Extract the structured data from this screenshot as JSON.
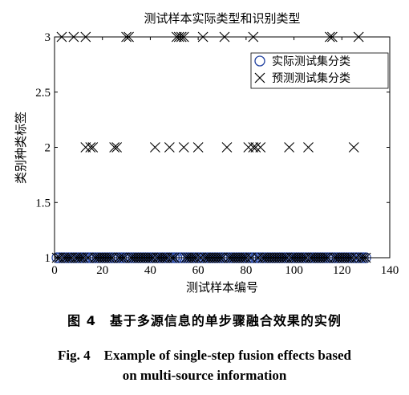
{
  "chart_data": {
    "type": "scatter",
    "title": "测试样本实际类型和识别类型",
    "xlabel": "测试样本编号",
    "ylabel": "类别种类标签",
    "xlim": [
      0,
      140
    ],
    "ylim": [
      1,
      3
    ],
    "xticks": [
      "0",
      "20",
      "40",
      "60",
      "80",
      "100",
      "120",
      "140"
    ],
    "yticks": [
      "1",
      "1.5",
      "2",
      "2.5",
      "3"
    ],
    "legend_position": "top-right",
    "series": [
      {
        "name": "实际测试集分类",
        "marker": "circle",
        "color": "#1f3f9f",
        "x_start": 1,
        "x_end": 130,
        "y": 1
      },
      {
        "name": "预测测试集分类",
        "marker": "x",
        "color": "#000000",
        "points": [
          [
            3,
            3
          ],
          [
            8,
            3
          ],
          [
            13,
            3
          ],
          [
            30,
            3
          ],
          [
            31,
            3
          ],
          [
            51,
            3
          ],
          [
            52,
            3
          ],
          [
            53,
            3
          ],
          [
            54,
            3
          ],
          [
            62,
            3
          ],
          [
            71,
            3
          ],
          [
            83,
            3
          ],
          [
            115,
            3
          ],
          [
            116,
            3
          ],
          [
            127,
            3
          ],
          [
            13,
            2
          ],
          [
            15,
            2
          ],
          [
            16,
            2
          ],
          [
            25,
            2
          ],
          [
            26,
            2
          ],
          [
            42,
            2
          ],
          [
            48,
            2
          ],
          [
            54,
            2
          ],
          [
            60,
            2
          ],
          [
            72,
            2
          ],
          [
            81,
            2
          ],
          [
            83,
            2
          ],
          [
            84,
            2
          ],
          [
            86,
            2
          ],
          [
            98,
            2
          ],
          [
            106,
            2
          ],
          [
            125,
            2
          ],
          [
            1,
            1
          ],
          [
            2,
            1
          ],
          [
            4,
            1
          ],
          [
            5,
            1
          ],
          [
            6,
            1
          ],
          [
            7,
            1
          ],
          [
            9,
            1
          ],
          [
            10,
            1
          ],
          [
            11,
            1
          ],
          [
            12,
            1
          ],
          [
            14,
            1
          ],
          [
            17,
            1
          ],
          [
            18,
            1
          ],
          [
            19,
            1
          ],
          [
            20,
            1
          ],
          [
            21,
            1
          ],
          [
            22,
            1
          ],
          [
            23,
            1
          ],
          [
            24,
            1
          ],
          [
            27,
            1
          ],
          [
            28,
            1
          ],
          [
            29,
            1
          ],
          [
            32,
            1
          ],
          [
            33,
            1
          ],
          [
            34,
            1
          ],
          [
            35,
            1
          ],
          [
            36,
            1
          ],
          [
            37,
            1
          ],
          [
            38,
            1
          ],
          [
            39,
            1
          ],
          [
            40,
            1
          ],
          [
            41,
            1
          ],
          [
            43,
            1
          ],
          [
            44,
            1
          ],
          [
            45,
            1
          ],
          [
            46,
            1
          ],
          [
            47,
            1
          ],
          [
            49,
            1
          ],
          [
            50,
            1
          ],
          [
            55,
            1
          ],
          [
            56,
            1
          ],
          [
            57,
            1
          ],
          [
            58,
            1
          ],
          [
            59,
            1
          ],
          [
            61,
            1
          ],
          [
            63,
            1
          ],
          [
            64,
            1
          ],
          [
            65,
            1
          ],
          [
            66,
            1
          ],
          [
            67,
            1
          ],
          [
            68,
            1
          ],
          [
            69,
            1
          ],
          [
            70,
            1
          ],
          [
            73,
            1
          ],
          [
            74,
            1
          ],
          [
            75,
            1
          ],
          [
            76,
            1
          ],
          [
            77,
            1
          ],
          [
            78,
            1
          ],
          [
            79,
            1
          ],
          [
            80,
            1
          ],
          [
            82,
            1
          ],
          [
            85,
            1
          ],
          [
            87,
            1
          ],
          [
            88,
            1
          ],
          [
            89,
            1
          ],
          [
            90,
            1
          ],
          [
            91,
            1
          ],
          [
            92,
            1
          ],
          [
            93,
            1
          ],
          [
            94,
            1
          ],
          [
            95,
            1
          ],
          [
            96,
            1
          ],
          [
            97,
            1
          ],
          [
            99,
            1
          ],
          [
            100,
            1
          ],
          [
            101,
            1
          ],
          [
            102,
            1
          ],
          [
            103,
            1
          ],
          [
            104,
            1
          ],
          [
            105,
            1
          ],
          [
            107,
            1
          ],
          [
            108,
            1
          ],
          [
            109,
            1
          ],
          [
            110,
            1
          ],
          [
            111,
            1
          ],
          [
            112,
            1
          ],
          [
            113,
            1
          ],
          [
            114,
            1
          ],
          [
            117,
            1
          ],
          [
            118,
            1
          ],
          [
            119,
            1
          ],
          [
            120,
            1
          ],
          [
            121,
            1
          ],
          [
            122,
            1
          ],
          [
            123,
            1
          ],
          [
            124,
            1
          ],
          [
            126,
            1
          ],
          [
            128,
            1
          ],
          [
            129,
            1
          ],
          [
            130,
            1
          ]
        ]
      }
    ]
  },
  "caption": {
    "zh": "图 4　基于多源信息的单步骤融合效果的实例",
    "en_line1": "Fig. 4　Example of single-step fusion effects based",
    "en_line2": "on multi-source information"
  }
}
